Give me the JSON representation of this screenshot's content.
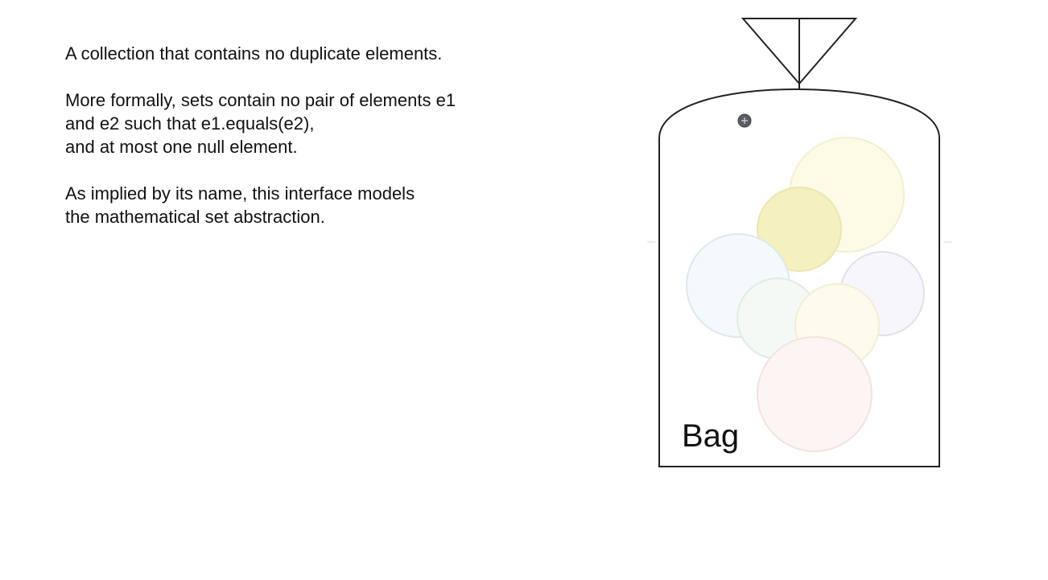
{
  "description": {
    "paragraphs": [
      {
        "lines": [
          "A collection that contains no duplicate elements."
        ]
      },
      {
        "lines": [
          "More formally, sets contain no pair of elements e1",
          "and e2 such that e1.equals(e2),",
          "and at most one null element."
        ]
      },
      {
        "lines": [
          "As implied by its name, this interface models",
          "the mathematical set abstraction."
        ]
      }
    ]
  },
  "bag": {
    "label": "Bag",
    "outline_color": "#222222",
    "handle_icon": "drag-handle-icon",
    "balls": [
      {
        "fill": "#fdfbe6",
        "stroke": "#f3efcf"
      },
      {
        "fill": "#f5f0bf",
        "stroke": "#ece5b0"
      },
      {
        "fill": "#f4fafc",
        "stroke": "#dbe8ee"
      },
      {
        "fill": "#f7f6fb",
        "stroke": "#e1e0ee"
      },
      {
        "fill": "#f3f9f4",
        "stroke": "#dfece1"
      },
      {
        "fill": "#fdfbec",
        "stroke": "#f3eed6"
      },
      {
        "fill": "#fdf5f3",
        "stroke": "#f3e2de"
      }
    ]
  }
}
